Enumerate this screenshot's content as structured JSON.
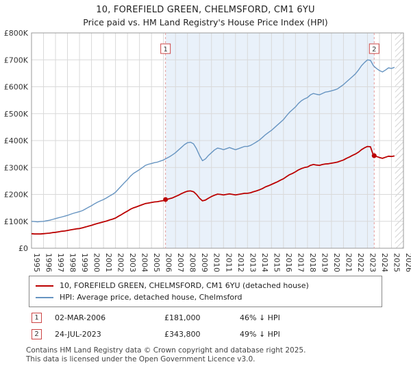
{
  "chart_data": {
    "type": "line",
    "title": "10, FOREFIELD GREEN, CHELMSFORD, CM1 6YU",
    "subtitle": "Price paid vs. HM Land Registry's House Price Index (HPI)",
    "y_units": "GBP thousands",
    "ylim": [
      0,
      800
    ],
    "xlim": [
      1995,
      2026
    ],
    "ytick_values": [
      0,
      100,
      200,
      300,
      400,
      500,
      600,
      700,
      800
    ],
    "ytick_labels": [
      "£0",
      "£100K",
      "£200K",
      "£300K",
      "£400K",
      "£500K",
      "£600K",
      "£700K",
      "£800K"
    ],
    "xticks": [
      1995,
      1996,
      1997,
      1998,
      1999,
      2000,
      2001,
      2002,
      2003,
      2004,
      2005,
      2006,
      2007,
      2008,
      2009,
      2010,
      2011,
      2012,
      2013,
      2014,
      2015,
      2016,
      2017,
      2018,
      2019,
      2020,
      2021,
      2022,
      2023,
      2024,
      2025,
      2026
    ],
    "grid": true,
    "legend_position": "bottom",
    "x": [
      1995,
      1995.25,
      1995.5,
      1995.75,
      1996,
      1996.25,
      1996.5,
      1996.75,
      1997,
      1997.25,
      1997.5,
      1997.75,
      1998,
      1998.25,
      1998.5,
      1998.75,
      1999,
      1999.25,
      1999.5,
      1999.75,
      2000,
      2000.25,
      2000.5,
      2000.75,
      2001,
      2001.25,
      2001.5,
      2001.75,
      2002,
      2002.25,
      2002.5,
      2002.75,
      2003,
      2003.25,
      2003.5,
      2003.75,
      2004,
      2004.25,
      2004.5,
      2004.75,
      2005,
      2005.25,
      2005.5,
      2005.75,
      2006,
      2006.25,
      2006.5,
      2006.75,
      2007,
      2007.25,
      2007.5,
      2007.75,
      2008,
      2008.25,
      2008.5,
      2008.75,
      2009,
      2009.25,
      2009.5,
      2009.75,
      2010,
      2010.25,
      2010.5,
      2010.75,
      2011,
      2011.25,
      2011.5,
      2011.75,
      2012,
      2012.25,
      2012.5,
      2012.75,
      2013,
      2013.25,
      2013.5,
      2013.75,
      2014,
      2014.25,
      2014.5,
      2014.75,
      2015,
      2015.25,
      2015.5,
      2015.75,
      2016,
      2016.25,
      2016.5,
      2016.75,
      2017,
      2017.25,
      2017.5,
      2017.75,
      2018,
      2018.25,
      2018.5,
      2018.75,
      2019,
      2019.25,
      2019.5,
      2019.75,
      2020,
      2020.25,
      2020.5,
      2020.75,
      2021,
      2021.25,
      2021.5,
      2021.75,
      2022,
      2022.25,
      2022.5,
      2022.75,
      2023,
      2023.25,
      2023.5,
      2023.75,
      2024,
      2024.25,
      2024.5,
      2024.75,
      2025,
      2025.25
    ],
    "series": [
      {
        "name": "10, FOREFIELD GREEN, CHELMSFORD, CM1 6YU (detached house)",
        "color": "#bb0000",
        "values": [
          54,
          53,
          53,
          53,
          54,
          55,
          56,
          58,
          59,
          61,
          63,
          64,
          66,
          68,
          70,
          72,
          73,
          76,
          79,
          82,
          85,
          89,
          92,
          95,
          98,
          101,
          105,
          108,
          112,
          119,
          125,
          132,
          138,
          145,
          150,
          154,
          158,
          162,
          166,
          168,
          170,
          172,
          173,
          175,
          177,
          181,
          184,
          187,
          192,
          197,
          203,
          208,
          212,
          213,
          210,
          200,
          186,
          176,
          179,
          186,
          192,
          197,
          201,
          200,
          198,
          200,
          202,
          200,
          198,
          200,
          202,
          204,
          204,
          206,
          210,
          213,
          217,
          222,
          228,
          232,
          237,
          242,
          247,
          253,
          258,
          266,
          273,
          278,
          284,
          291,
          296,
          300,
          302,
          308,
          311,
          309,
          308,
          311,
          313,
          314,
          316,
          318,
          320,
          324,
          328,
          334,
          339,
          345,
          350,
          357,
          366,
          373,
          378,
          377,
          344,
          341,
          337,
          334,
          338,
          342,
          341,
          343
        ]
      },
      {
        "name": "HPI: Average price, detached house, Chelmsford",
        "color": "#6694c1",
        "values": [
          100,
          99,
          98,
          99,
          100,
          102,
          104,
          107,
          110,
          113,
          116,
          119,
          122,
          126,
          130,
          133,
          136,
          140,
          146,
          152,
          158,
          165,
          171,
          176,
          181,
          187,
          194,
          200,
          208,
          220,
          232,
          244,
          255,
          268,
          278,
          285,
          292,
          300,
          308,
          312,
          315,
          318,
          320,
          324,
          328,
          334,
          340,
          347,
          355,
          365,
          375,
          385,
          392,
          394,
          388,
          370,
          345,
          325,
          332,
          345,
          355,
          365,
          372,
          370,
          366,
          370,
          374,
          370,
          366,
          370,
          374,
          378,
          378,
          382,
          388,
          395,
          402,
          412,
          422,
          430,
          438,
          448,
          458,
          468,
          478,
          492,
          505,
          515,
          525,
          538,
          548,
          555,
          560,
          570,
          575,
          572,
          570,
          575,
          580,
          582,
          585,
          588,
          592,
          600,
          608,
          618,
          628,
          638,
          648,
          662,
          678,
          690,
          700,
          698,
          678,
          668,
          660,
          655,
          662,
          670,
          668,
          672
        ]
      }
    ],
    "markers": [
      {
        "label": "1",
        "x": 2006.17,
        "y": 181,
        "date": "02-MAR-2006",
        "price": "£181,000",
        "hpi_diff": "46% ↓ HPI"
      },
      {
        "label": "2",
        "x": 2023.56,
        "y": 343.8,
        "date": "24-JUL-2023",
        "price": "£343,800",
        "hpi_diff": "49% ↓ HPI"
      }
    ],
    "shaded_region": [
      2006.17,
      2023.56
    ],
    "hatch_region": [
      2025.3,
      2026
    ],
    "colors": {
      "shaded_fill": "#e9f1fa",
      "dashed_marker_line": "#e39a9a",
      "grid": "#d9d9d9",
      "plot_border": "#999999",
      "hatch_line": "#c8c8c8"
    }
  },
  "footer": {
    "line1": "Contains HM Land Registry data © Crown copyright and database right 2025.",
    "line2": "This data is licensed under the Open Government Licence v3.0."
  }
}
